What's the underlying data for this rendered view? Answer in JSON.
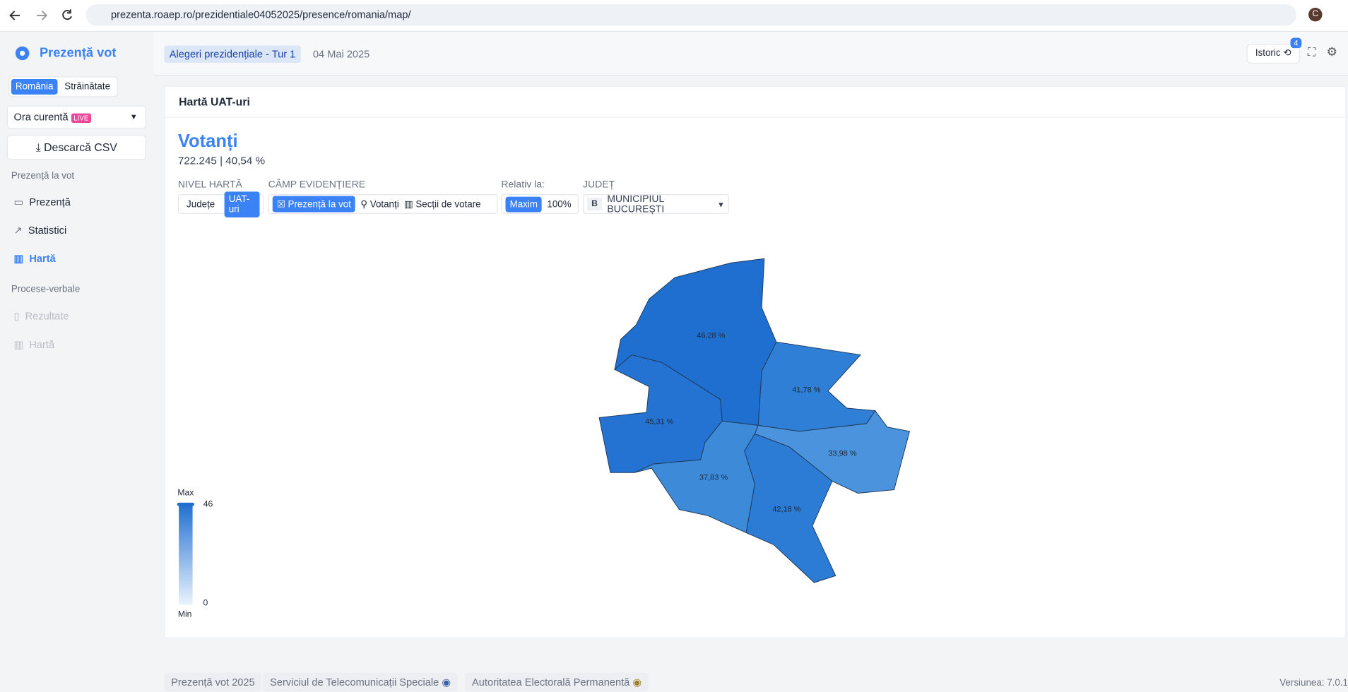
{
  "browser": {
    "url": "prezenta.roaep.ro/prezidentiale04052025/presence/romania/map/",
    "avatar": "C"
  },
  "sidebar": {
    "brand": "Prezență vot",
    "tabs": [
      "România",
      "Străinătate"
    ],
    "time_select": "Ora curentă",
    "live": "LIVE",
    "download": "Descarcă CSV",
    "section_presence": "Prezență la vot",
    "nav_presence": [
      "Prezență",
      "Statistici",
      "Hartă"
    ],
    "section_reports": "Procese-verbale",
    "nav_reports": [
      "Rezultate",
      "Hartă"
    ]
  },
  "topbar": {
    "election": "Alegeri prezidențiale - Tur 1",
    "date": "04 Mai 2025",
    "history": "Istoric",
    "badge": "4"
  },
  "card": {
    "title": "Hartă UAT-uri",
    "metric": "Votanți",
    "count": "722.245",
    "percent": "40,54 %",
    "controls": {
      "level_label": "NIVEL HARTĂ",
      "levels": [
        "Județe",
        "UAT-uri"
      ],
      "field_label": "CÂMP EVIDENȚIERE",
      "fields": [
        "Prezență la vot",
        "Votanți",
        "Secții de votare"
      ],
      "relative_label": "Relativ la:",
      "relative": [
        "Maxim",
        "100%"
      ],
      "county_label": "JUDEȚ",
      "county_code": "B",
      "county": "MUNICIPIUL BUCUREȘTI"
    }
  },
  "map": {
    "regions": [
      "46,28 %",
      "41,78 %",
      "45,31 %",
      "37,83 %",
      "33,98 %",
      "42,18 %"
    ],
    "legend": {
      "max": "Max",
      "max_value": "46",
      "min_value": "0",
      "min": "Min"
    }
  },
  "footer": {
    "items": [
      "Prezență vot 2025",
      "Serviciul de Telecomunicații Speciale",
      "Autoritatea Electorală Permanentă"
    ],
    "version": "Versiunea: 7.0.1"
  }
}
